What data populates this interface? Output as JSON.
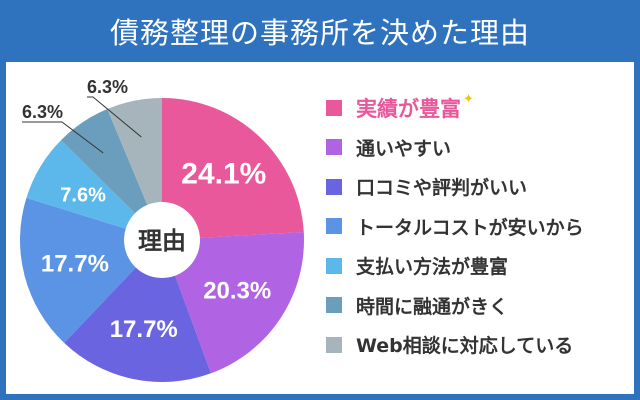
{
  "header": {
    "title": "債務整理の事務所を決めた理由"
  },
  "chart_data": {
    "type": "pie",
    "title": "債務整理の事務所を決めた理由",
    "center_label": "理由",
    "categories": [
      "実績が豊富",
      "通いやすい",
      "口コミや評判がいい",
      "トータルコストが安いから",
      "支払い方法が豊富",
      "時間に融通がきく",
      "Web相談に対応している"
    ],
    "values": [
      24.1,
      20.3,
      17.7,
      17.7,
      7.6,
      6.3,
      6.3
    ],
    "labels": [
      "24.1%",
      "20.3%",
      "17.7%",
      "17.7%",
      "7.6%",
      "6.3%",
      "6.3%"
    ],
    "colors": [
      "#e8589a",
      "#b063e3",
      "#6b64e0",
      "#5b93e5",
      "#5cb8ea",
      "#6a9ebc",
      "#a5b5bb"
    ],
    "legend_position": "right",
    "highlight": "実績が豊富"
  },
  "legend": {
    "items": [
      {
        "label": "実績が豊富",
        "color": "#e8589a"
      },
      {
        "label": "通いやすい",
        "color": "#b063e3"
      },
      {
        "label": "口コミや評判がいい",
        "color": "#6b64e0"
      },
      {
        "label": "トータルコストが安いから",
        "color": "#5b93e5"
      },
      {
        "label": "支払い方法が豊富",
        "color": "#5cb8ea"
      },
      {
        "label": "時間に融通がきく",
        "color": "#6a9ebc"
      },
      {
        "label": "Web相談に対応している",
        "color": "#a5b5bb"
      }
    ],
    "sparkle": "✦"
  }
}
